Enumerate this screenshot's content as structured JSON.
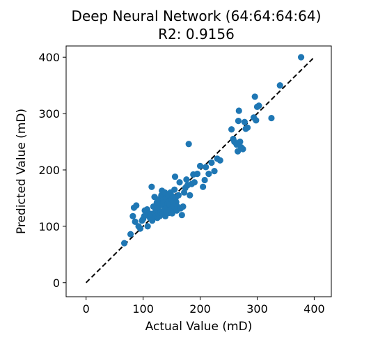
{
  "chart_data": {
    "type": "scatter",
    "title": "Deep Neural Network (64:64:64:64)",
    "subtitle": "R2: 0.9156",
    "xlabel": "Actual Value (mD)",
    "ylabel": "Predicted Value (mD)",
    "xlim": [
      -35,
      430
    ],
    "ylim": [
      -25,
      420
    ],
    "xticks": [
      0,
      100,
      200,
      300,
      400
    ],
    "yticks": [
      0,
      100,
      200,
      300,
      400
    ],
    "grid": false,
    "point_color": "#1f77b4",
    "reference_line": {
      "style": "dashed",
      "color": "#000000",
      "from": [
        0,
        0
      ],
      "to": [
        400,
        400
      ]
    },
    "points": [
      [
        67,
        70
      ],
      [
        78,
        86
      ],
      [
        82,
        118
      ],
      [
        84,
        133
      ],
      [
        86,
        108
      ],
      [
        88,
        137
      ],
      [
        92,
        100
      ],
      [
        95,
        96
      ],
      [
        98,
        110
      ],
      [
        100,
        113
      ],
      [
        102,
        118
      ],
      [
        103,
        128
      ],
      [
        105,
        120
      ],
      [
        107,
        130
      ],
      [
        108,
        100
      ],
      [
        110,
        123
      ],
      [
        112,
        115
      ],
      [
        114,
        122
      ],
      [
        115,
        170
      ],
      [
        116,
        110
      ],
      [
        118,
        135
      ],
      [
        120,
        152
      ],
      [
        121,
        125
      ],
      [
        122,
        118
      ],
      [
        123,
        130
      ],
      [
        124,
        142
      ],
      [
        125,
        115
      ],
      [
        126,
        133
      ],
      [
        127,
        121
      ],
      [
        128,
        148
      ],
      [
        129,
        118
      ],
      [
        130,
        140
      ],
      [
        131,
        125
      ],
      [
        132,
        155
      ],
      [
        133,
        163
      ],
      [
        134,
        121
      ],
      [
        135,
        137
      ],
      [
        136,
        145
      ],
      [
        137,
        130
      ],
      [
        138,
        160
      ],
      [
        139,
        118
      ],
      [
        140,
        150
      ],
      [
        141,
        126
      ],
      [
        142,
        133
      ],
      [
        143,
        140
      ],
      [
        144,
        155
      ],
      [
        145,
        124
      ],
      [
        146,
        145
      ],
      [
        147,
        138
      ],
      [
        148,
        160
      ],
      [
        149,
        130
      ],
      [
        150,
        148
      ],
      [
        151,
        123
      ],
      [
        152,
        153
      ],
      [
        153,
        140
      ],
      [
        154,
        135
      ],
      [
        155,
        165
      ],
      [
        156,
        188
      ],
      [
        157,
        150
      ],
      [
        158,
        143
      ],
      [
        159,
        128
      ],
      [
        160,
        135
      ],
      [
        162,
        155
      ],
      [
        164,
        178
      ],
      [
        166,
        132
      ],
      [
        168,
        120
      ],
      [
        170,
        135
      ],
      [
        172,
        160
      ],
      [
        174,
        168
      ],
      [
        176,
        183
      ],
      [
        178,
        173
      ],
      [
        180,
        246
      ],
      [
        182,
        155
      ],
      [
        185,
        175
      ],
      [
        188,
        192
      ],
      [
        190,
        178
      ],
      [
        195,
        193
      ],
      [
        200,
        207
      ],
      [
        205,
        170
      ],
      [
        208,
        182
      ],
      [
        210,
        205
      ],
      [
        215,
        193
      ],
      [
        220,
        213
      ],
      [
        225,
        198
      ],
      [
        230,
        220
      ],
      [
        235,
        217
      ],
      [
        255,
        272
      ],
      [
        258,
        255
      ],
      [
        260,
        250
      ],
      [
        264,
        245
      ],
      [
        266,
        233
      ],
      [
        267,
        287
      ],
      [
        268,
        305
      ],
      [
        270,
        250
      ],
      [
        272,
        240
      ],
      [
        275,
        237
      ],
      [
        278,
        285
      ],
      [
        280,
        273
      ],
      [
        283,
        275
      ],
      [
        294,
        293
      ],
      [
        296,
        330
      ],
      [
        298,
        288
      ],
      [
        300,
        312
      ],
      [
        303,
        314
      ],
      [
        325,
        292
      ],
      [
        340,
        350
      ],
      [
        377,
        400
      ]
    ]
  }
}
